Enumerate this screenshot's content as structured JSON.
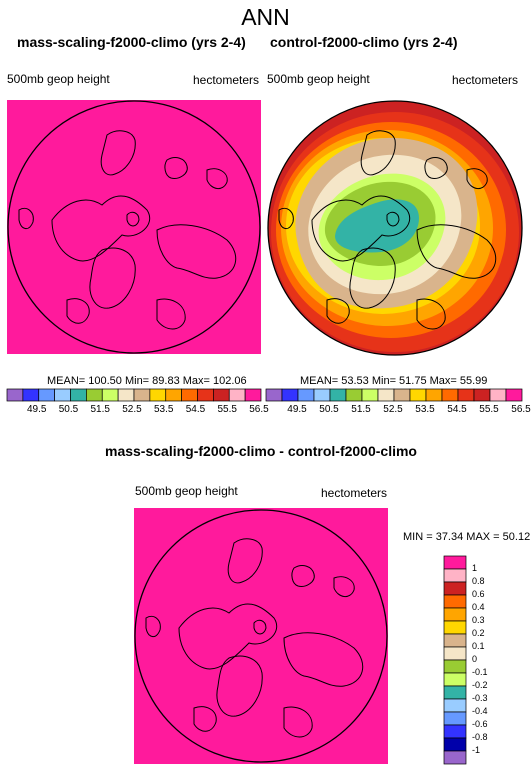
{
  "title": "ANN",
  "palette": [
    "#9966cc",
    "#3333ff",
    "#6699ff",
    "#99ccff",
    "#33b3a6",
    "#99cc33",
    "#ccff66",
    "#f5e6c8",
    "#d9b48c",
    "#ffd700",
    "#ffa500",
    "#ff6a00",
    "#e63319",
    "#cc2222",
    "#ffb3c6",
    "#ff1a9c"
  ],
  "panel_left": {
    "title": "mass-scaling-f2000-climo (yrs 2-4)",
    "variable": "500mb geop height",
    "units": "hectometers",
    "stats": "MEAN= 100.50  Min=  89.83  Max= 102.06",
    "fill_color": "#ff1a9c"
  },
  "panel_right": {
    "title": "control-f2000-climo (yrs 2-4)",
    "variable": "500mb geop height",
    "units": "hectometers",
    "stats": "MEAN= 53.53  Min=  51.75  Max=  55.99"
  },
  "top_colorbar_labels": [
    "49.5",
    "50.5",
    "51.5",
    "52.5",
    "53.5",
    "54.5",
    "55.5",
    "56.5"
  ],
  "panel_diff": {
    "title": "mass-scaling-f2000-climo - control-f2000-climo",
    "variable": "500mb geop height",
    "units": "hectometers",
    "stats": "MIN =  37.34 MAX =  50.12",
    "fill_color": "#ff1a9c"
  },
  "diff_colorbar": {
    "labels": [
      "1",
      "0.8",
      "0.6",
      "0.4",
      "0.3",
      "0.2",
      "0.1",
      "0",
      "-0.1",
      "-0.2",
      "-0.3",
      "-0.4",
      "-0.6",
      "-0.8",
      "-1"
    ],
    "colors": [
      "#ff1a9c",
      "#ffb3c6",
      "#cc2222",
      "#ff6a00",
      "#ffa500",
      "#ffd700",
      "#d9b48c",
      "#f5e6c8",
      "#99cc33",
      "#ccff66",
      "#33b3a6",
      "#99ccff",
      "#6699ff",
      "#3333ff",
      "#0000aa",
      "#9966cc"
    ]
  }
}
